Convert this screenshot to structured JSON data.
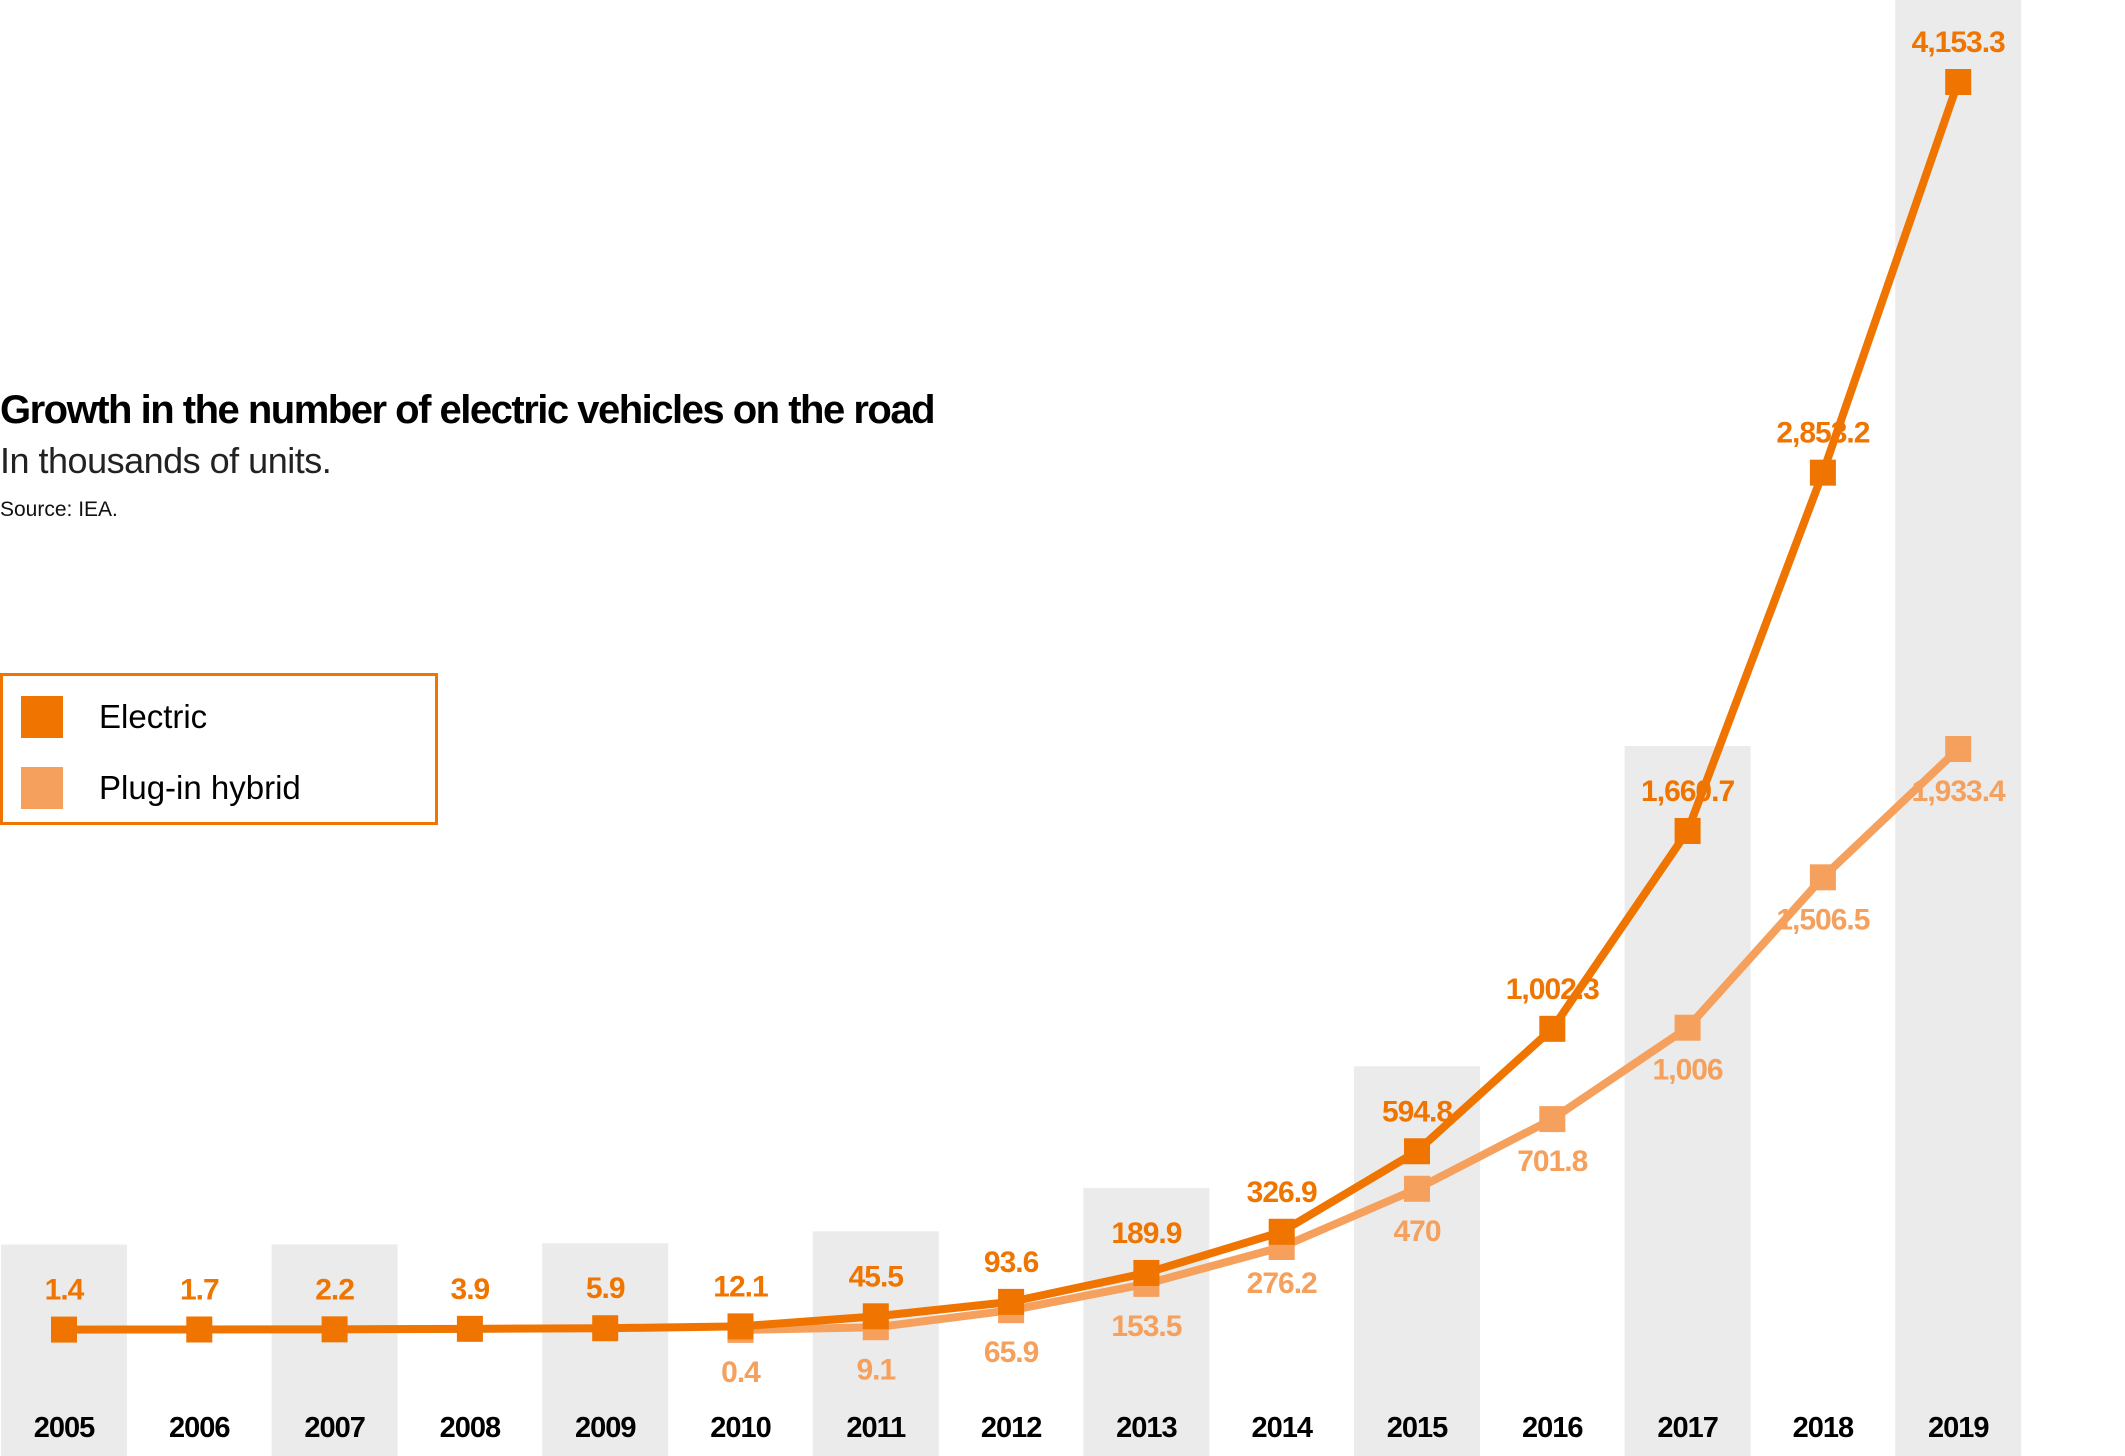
{
  "title": "Growth in the number of electric vehicles on the road",
  "subtitle": "In thousands of units.",
  "source": "Source: IEA.",
  "legend": {
    "items": [
      {
        "label": "Electric",
        "color": "#ef7400"
      },
      {
        "label": "Plug-in hybrid",
        "color": "#f5a05c"
      }
    ],
    "placement": "left"
  },
  "chart_data": {
    "type": "line",
    "title": "Growth in the number of electric vehicles on the road",
    "subtitle": "In thousands of units.",
    "x": [
      "2005",
      "2006",
      "2007",
      "2008",
      "2009",
      "2010",
      "2011",
      "2012",
      "2013",
      "2014",
      "2015",
      "2016",
      "2017",
      "2018",
      "2019"
    ],
    "series": [
      {
        "name": "Electric",
        "color": "#ef7400",
        "values": [
          1.4,
          1.7,
          2.2,
          3.9,
          5.9,
          12.1,
          45.5,
          93.6,
          189.9,
          326.9,
          594.8,
          1002.3,
          1660.7,
          2853.2,
          4153.3
        ],
        "labels": [
          "1.4",
          "1.7",
          "2.2",
          "3.9",
          "5.9",
          "12.1",
          "45.5",
          "93.6",
          "189.9",
          "326.9",
          "594.8",
          "1,002.3",
          "1,660.7",
          "2,853.2",
          "4,153.3"
        ]
      },
      {
        "name": "Plug-in hybrid",
        "color": "#f5a05c",
        "values": [
          null,
          null,
          null,
          null,
          null,
          0.4,
          9.1,
          65.9,
          153.5,
          276.2,
          470,
          701.8,
          1006,
          1506.5,
          1933.4
        ],
        "labels": [
          "",
          "",
          "",
          "",
          "",
          "0.4",
          "9.1",
          "65.9",
          "153.5",
          "276.2",
          "470",
          "701.8",
          "1,006",
          "1,506.5",
          "1,933.4"
        ]
      }
    ],
    "ylim": [
      0,
      4153.3
    ],
    "grid": false,
    "background_band_color": "#ebebeb"
  }
}
